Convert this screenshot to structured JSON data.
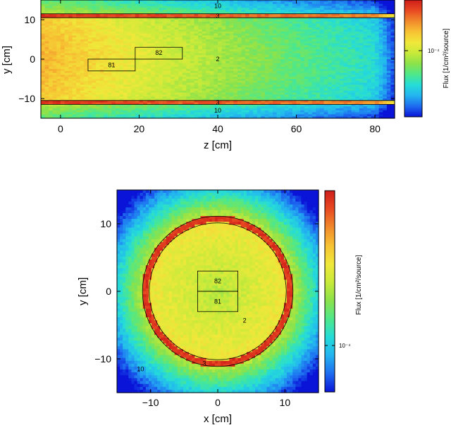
{
  "colors": {
    "scale": [
      "#0a14d8",
      "#1e6cf0",
      "#23b4f0",
      "#25dcd8",
      "#4ee88a",
      "#8ce24a",
      "#c8ea3a",
      "#f0e83a",
      "#f7c233",
      "#f18a2b",
      "#e84a22",
      "#cf1e1a"
    ],
    "outline": "#000000"
  },
  "chart_data": [
    {
      "type": "heatmap",
      "view": "side",
      "xlabel": "z [cm]",
      "ylabel": "y [cm]",
      "xlim": [
        -5,
        85
      ],
      "ylim": [
        -15,
        15
      ],
      "x_ticks": [
        "0",
        "20",
        "40",
        "60",
        "80"
      ],
      "y_ticks": [
        "10",
        "0",
        "−10"
      ],
      "colorbar_label": "Flux [1/cm²/source]",
      "colorbar_tick": "10⁻⁴",
      "regions": [
        {
          "label": "10",
          "x": 40,
          "y": 13.5
        },
        {
          "label": "3",
          "x": 40,
          "y": 11
        },
        {
          "label": "82",
          "x": 25,
          "y": 1.6
        },
        {
          "label": "2",
          "x": 40,
          "y": 0
        },
        {
          "label": "81",
          "x": 13,
          "y": -1.5
        },
        {
          "label": "3",
          "x": 40,
          "y": -11
        },
        {
          "label": "10",
          "x": 40,
          "y": -13
        }
      ],
      "boxes": [
        {
          "label": "82",
          "z": [
            19,
            31
          ],
          "y": [
            0,
            3
          ]
        },
        {
          "label": "81",
          "z": [
            7,
            19
          ],
          "y": [
            -3,
            0
          ]
        }
      ],
      "bands": [
        {
          "y": [
            10.5,
            11.5
          ]
        },
        {
          "y": [
            -11.5,
            -10.5
          ]
        }
      ]
    },
    {
      "type": "heatmap",
      "view": "cross-section",
      "xlabel": "x [cm]",
      "ylabel": "y [cm]",
      "xlim": [
        -15,
        15
      ],
      "ylim": [
        -15,
        15
      ],
      "x_ticks": [
        "−10",
        "0",
        "10"
      ],
      "y_ticks": [
        "10",
        "0",
        "−10"
      ],
      "colorbar_label": "Flux [1/cm²/source]",
      "colorbar_tick": "10⁻⁴",
      "regions": [
        {
          "label": "82",
          "x": 0,
          "y": 1.5
        },
        {
          "label": "81",
          "x": 0,
          "y": -1.5
        },
        {
          "label": "2",
          "x": 4,
          "y": -4.3
        },
        {
          "label": "3",
          "x": -2,
          "y": -10.7
        },
        {
          "label": "10",
          "x": -11.5,
          "y": -11.5
        }
      ],
      "boxes": [
        {
          "label": "82",
          "x": [
            -3,
            3
          ],
          "y": [
            0,
            3
          ]
        },
        {
          "label": "81",
          "x": [
            -3,
            3
          ],
          "y": [
            -3,
            0
          ]
        }
      ],
      "ring": {
        "inner_radius": 10.2,
        "outer_radius": 11.2
      }
    }
  ]
}
